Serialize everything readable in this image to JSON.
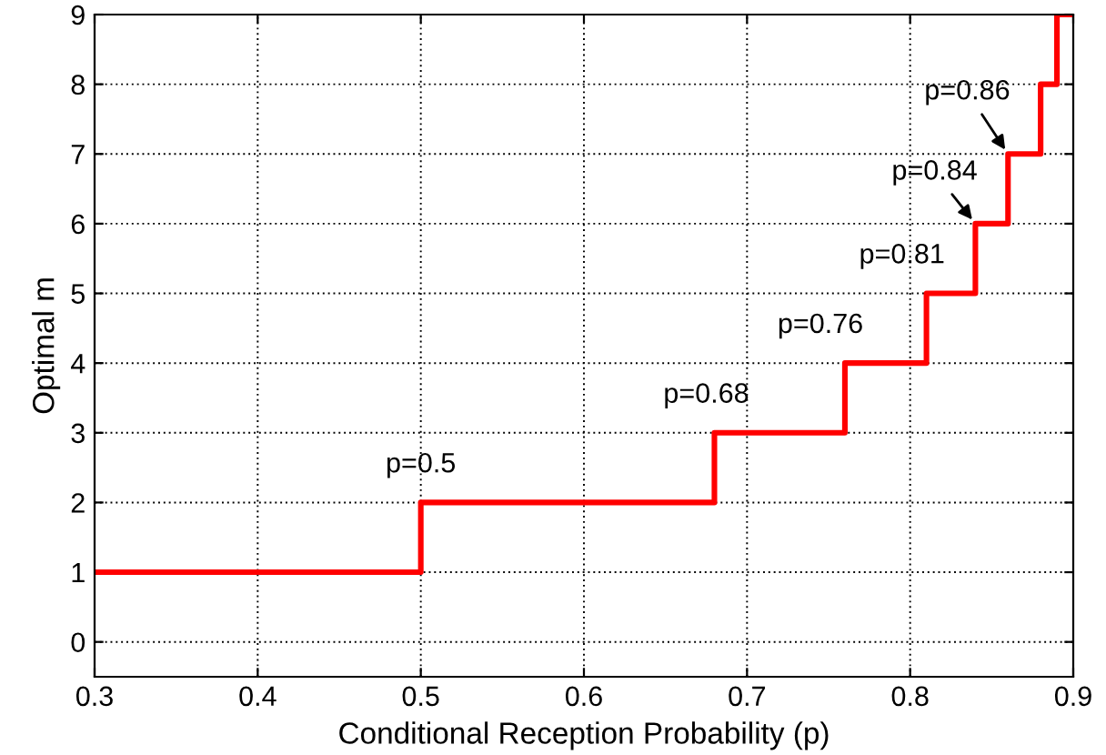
{
  "chart_data": {
    "type": "step",
    "xlabel": "Conditional Reception Probability (p)",
    "ylabel": "Optimal m",
    "x": [
      0.3,
      0.5,
      0.68,
      0.76,
      0.81,
      0.84,
      0.86,
      0.88,
      0.89,
      0.9
    ],
    "series": [
      {
        "color": "#ff0000",
        "values": [
          1,
          2,
          3,
          4,
          5,
          6,
          7,
          8,
          9,
          9
        ]
      }
    ],
    "xlim": [
      0.3,
      0.9
    ],
    "xticks": [
      0.3,
      0.4,
      0.5,
      0.6,
      0.7,
      0.8,
      0.9
    ],
    "ylim": [
      -0.5,
      9
    ],
    "yticks": [
      0,
      1,
      2,
      3,
      4,
      5,
      6,
      7,
      8,
      9
    ],
    "grid": true,
    "annotations": [
      {
        "text": "p=0.5",
        "x": 0.5,
        "y": 2
      },
      {
        "text": "p=0.68",
        "x": 0.68,
        "y": 3
      },
      {
        "text": "p=0.76",
        "x": 0.76,
        "y": 4
      },
      {
        "text": "p=0.81",
        "x": 0.81,
        "y": 5
      },
      {
        "text": "p=0.84",
        "x": 0.84,
        "y": 6
      },
      {
        "text": "p=0.86",
        "x": 0.86,
        "y": 7
      }
    ]
  }
}
